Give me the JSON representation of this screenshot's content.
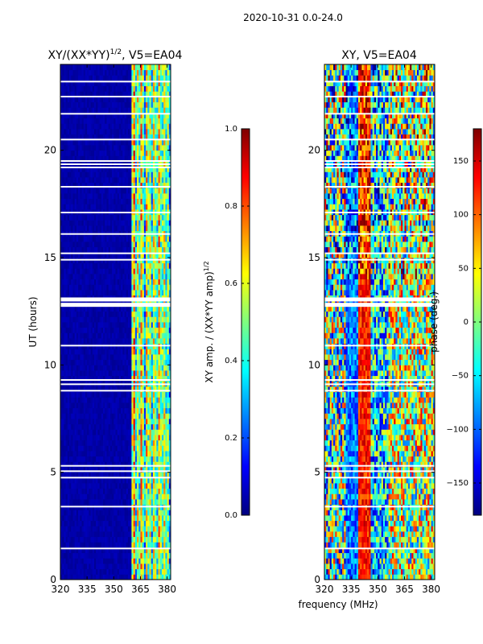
{
  "figure": {
    "suptitle": "2020-10-31 0.0-24.0"
  },
  "colors": {
    "jet": [
      "#00007f",
      "#0000ff",
      "#007fff",
      "#00ffff",
      "#7fff7f",
      "#ffff00",
      "#ff7f00",
      "#ff0000",
      "#7f0000"
    ],
    "gap": "#ffffff",
    "frame": "#000000"
  },
  "chart_data": [
    {
      "type": "heatmap",
      "title_main": "XY/(XX*YY)",
      "title_sup": "1/2",
      "title_tail": ", V5=EA04",
      "xlabel": "",
      "ylabel": "UT (hours)",
      "xlim": [
        320,
        382
      ],
      "ylim": [
        0,
        24
      ],
      "xticks": [
        320,
        335,
        350,
        365,
        380
      ],
      "yticks": [
        0,
        5,
        10,
        15,
        20
      ],
      "clim": [
        0.0,
        1.0
      ],
      "colorbar_label_main": "XY amp. / (XX*YY amp)",
      "colorbar_label_sup": "1/2",
      "colorbar_ticks": [
        "0.0",
        "0.2",
        "0.4",
        "0.6",
        "0.8",
        "1.0"
      ],
      "colorbar_values": [
        0.0,
        0.2,
        0.4,
        0.6,
        0.8,
        1.0
      ],
      "description": "Mostly near 0 below ~360 MHz; 0.3-0.9 striped structure above ~360 MHz",
      "flagged_ut_hours": [
        1.45,
        3.4,
        4.75,
        5.05,
        5.3,
        8.8,
        9.1,
        9.3,
        10.9,
        12.8,
        13.05,
        14.9,
        15.2,
        16.1,
        17.1,
        18.3,
        19.2,
        19.35,
        19.5,
        20.5,
        21.7,
        22.5,
        23.2
      ]
    },
    {
      "type": "heatmap",
      "title": "XY, V5=EA04",
      "xlabel": "frequency (MHz)",
      "ylabel": "",
      "xlim": [
        320,
        382
      ],
      "ylim": [
        0,
        24
      ],
      "xticks": [
        320,
        335,
        350,
        365,
        380
      ],
      "yticks": [
        0,
        5,
        10,
        15,
        20
      ],
      "clim": [
        -180,
        180
      ],
      "colorbar_label": "phase (deg.)",
      "colorbar_ticks": [
        "−150",
        "−100",
        "−50",
        "0",
        "50",
        "100",
        "150"
      ],
      "colorbar_values": [
        -150,
        -100,
        -50,
        0,
        50,
        100,
        150
      ],
      "description": "Phase wraps across full range; blue band near 330-338 MHz and orange/red band near 338-345 MHz",
      "flagged_ut_hours": [
        1.45,
        3.4,
        4.75,
        5.05,
        5.3,
        8.8,
        9.1,
        9.3,
        10.9,
        12.8,
        13.05,
        14.9,
        15.2,
        16.1,
        17.1,
        18.3,
        19.2,
        19.35,
        19.5,
        20.5,
        21.7,
        22.5,
        23.2
      ]
    }
  ]
}
